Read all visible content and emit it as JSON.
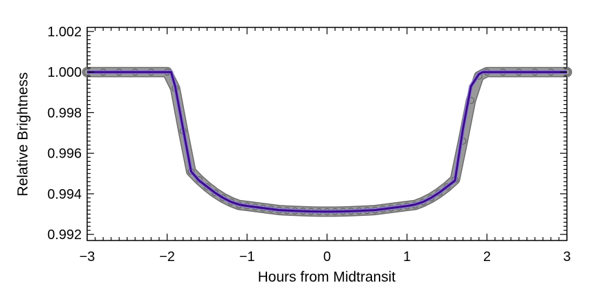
{
  "chart_data": {
    "type": "scatter",
    "title": "",
    "xlabel": "Hours from Midtransit",
    "ylabel": "Relative Brightness",
    "xlim": [
      -3,
      3
    ],
    "ylim": [
      0.9917,
      1.0022
    ],
    "grid": false,
    "legend": "none",
    "x_ticks": [
      -3,
      -2,
      -1,
      0,
      1,
      2,
      3
    ],
    "x_tick_labels": [
      "−3",
      "−2",
      "−1",
      "0",
      "1",
      "2",
      "3"
    ],
    "y_ticks": [
      0.992,
      0.994,
      0.996,
      0.998,
      1.0,
      1.002
    ],
    "y_tick_labels": [
      "0.992",
      "0.994",
      "0.996",
      "0.998",
      "1.000",
      "1.002"
    ],
    "series": [
      {
        "kind": "scatter",
        "color": "#9a9a9a",
        "x": [
          -3.0,
          -2.8,
          -2.6,
          -2.4,
          -2.2,
          -2.0,
          -1.9,
          -1.8,
          -1.7,
          -1.6,
          -1.5,
          -1.4,
          -1.3,
          -1.2,
          -1.1,
          -1.0,
          -0.9,
          -0.8,
          -0.7,
          -0.6,
          -0.5,
          -0.4,
          -0.3,
          -0.2,
          -0.1,
          0.0,
          0.1,
          0.2,
          0.3,
          0.4,
          0.5,
          0.6,
          0.7,
          0.8,
          0.9,
          1.0,
          1.1,
          1.2,
          1.3,
          1.4,
          1.5,
          1.6,
          1.7,
          1.8,
          1.9,
          2.0,
          2.2,
          2.4,
          2.6,
          2.8,
          3.0
        ],
        "y": [
          1.0,
          1.0,
          1.0,
          1.0,
          1.0,
          1.0,
          0.9992,
          0.9971,
          0.9951,
          0.9947,
          0.99435,
          0.99405,
          0.9938,
          0.9936,
          0.99345,
          0.9934,
          0.99335,
          0.9933,
          0.99325,
          0.9932,
          0.99318,
          0.99316,
          0.99314,
          0.99313,
          0.99312,
          0.99312,
          0.99312,
          0.99313,
          0.99314,
          0.99316,
          0.99318,
          0.9932,
          0.99325,
          0.9933,
          0.99335,
          0.9934,
          0.99345,
          0.9936,
          0.9938,
          0.99405,
          0.99435,
          0.9947,
          0.9966,
          0.9986,
          0.9998,
          1.0,
          1.0,
          1.0,
          1.0,
          1.0,
          1.0
        ]
      },
      {
        "kind": "line",
        "color": "#3d0a8c",
        "x": [
          -3.0,
          -1.95,
          -1.9,
          -1.8,
          -1.7,
          -1.6,
          -1.5,
          -1.4,
          -1.3,
          -1.2,
          -1.1,
          -1.0,
          -0.8,
          -0.6,
          -0.4,
          -0.2,
          0.0,
          0.2,
          0.4,
          0.6,
          0.8,
          1.0,
          1.1,
          1.2,
          1.3,
          1.4,
          1.5,
          1.6,
          1.7,
          1.8,
          1.9,
          1.95,
          3.0
        ],
        "y": [
          1.0,
          1.0,
          0.9993,
          0.9972,
          0.9951,
          0.99465,
          0.99435,
          0.99405,
          0.9938,
          0.9936,
          0.99347,
          0.9934,
          0.9933,
          0.9932,
          0.99316,
          0.99313,
          0.99312,
          0.99313,
          0.99316,
          0.9932,
          0.9933,
          0.9934,
          0.99347,
          0.9936,
          0.9938,
          0.99405,
          0.99435,
          0.99465,
          0.9972,
          0.9993,
          0.9999,
          1.0,
          1.0
        ]
      }
    ]
  }
}
